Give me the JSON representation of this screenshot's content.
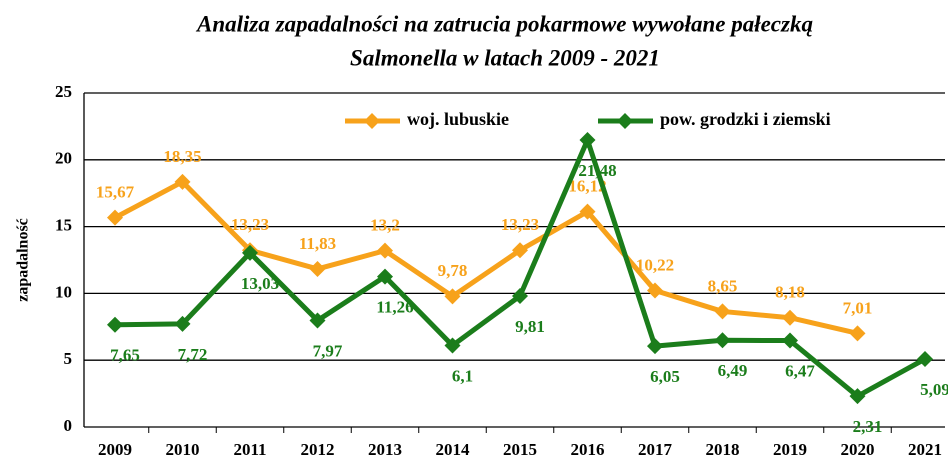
{
  "chart_data": {
    "type": "line",
    "title": [
      "Analiza zapadalności na zatrucia pokarmowe wywołane pałeczką",
      "Salmonella w latach 2009 - 2021"
    ],
    "ylabel": "zapadalność",
    "categories": [
      "2009",
      "2010",
      "2011",
      "2012",
      "2013",
      "2014",
      "2015",
      "2016",
      "2017",
      "2018",
      "2019",
      "2020",
      "2021"
    ],
    "series": [
      {
        "name": "woj. lubuskie",
        "color": "#f7a21b",
        "values": [
          15.67,
          18.35,
          13.23,
          11.83,
          13.2,
          9.78,
          13.23,
          16.12,
          10.22,
          8.65,
          8.18,
          7.01,
          null
        ],
        "value_labels": [
          "15,67",
          "18,35",
          "13,23",
          "11,83",
          "13,2",
          "9,78",
          "13,23",
          "16,12",
          "10,22",
          "8,65",
          "8,18",
          "7,01",
          null
        ]
      },
      {
        "name": "pow. grodzki i ziemski",
        "color": "#1b7d1b",
        "values": [
          7.65,
          7.72,
          13.03,
          7.97,
          11.26,
          6.1,
          9.81,
          21.48,
          6.05,
          6.49,
          6.47,
          2.31,
          5.09
        ],
        "value_labels": [
          "7,65",
          "7,72",
          "13,03",
          "7,97",
          "11,26",
          "6,1",
          "9,81",
          "21,48",
          "6,05",
          "6,49",
          "6,47",
          "2,31",
          "5,09"
        ]
      }
    ],
    "ylim": [
      0,
      25
    ],
    "yticks": [
      0,
      5,
      10,
      15,
      20,
      25
    ],
    "grid": true,
    "legend": "top"
  }
}
